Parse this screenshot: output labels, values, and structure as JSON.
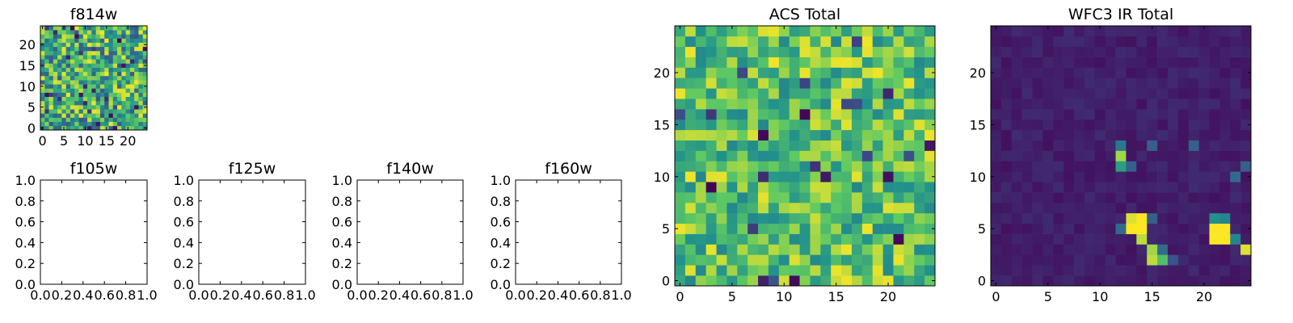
{
  "figure": {
    "colormap": "viridis",
    "colors": [
      "#440154",
      "#3b528b",
      "#21918c",
      "#5ec962",
      "#fde725"
    ]
  },
  "chart_data": [
    {
      "id": "f814w",
      "type": "heatmap",
      "title": "f814w",
      "grid_size": 25,
      "xlim": [
        -0.5,
        24.5
      ],
      "ylim": [
        -0.5,
        24.5
      ],
      "xticks": [
        0,
        5,
        10,
        15,
        20
      ],
      "yticks": [
        0,
        5,
        10,
        15,
        20
      ],
      "field": {
        "kind": "noise",
        "base": 0.62,
        "spread": 0.36,
        "seed": 11,
        "dark_rate": 0.04
      },
      "grid": false
    },
    {
      "id": "f105w",
      "type": "heatmap",
      "title": "f105w",
      "empty": true,
      "xlim": [
        0,
        1
      ],
      "ylim": [
        0,
        1
      ],
      "xticks": [
        "0.0",
        "0.2",
        "0.4",
        "0.6",
        "0.8",
        "1.0"
      ],
      "yticks": [
        "0.0",
        "0.2",
        "0.4",
        "0.6",
        "0.8",
        "1.0"
      ],
      "grid": false
    },
    {
      "id": "f125w",
      "type": "heatmap",
      "title": "f125w",
      "empty": true,
      "xlim": [
        0,
        1
      ],
      "ylim": [
        0,
        1
      ],
      "xticks": [
        "0.0",
        "0.2",
        "0.4",
        "0.6",
        "0.8",
        "1.0"
      ],
      "yticks": [
        "0.0",
        "0.2",
        "0.4",
        "0.6",
        "0.8",
        "1.0"
      ],
      "grid": false
    },
    {
      "id": "f140w",
      "type": "heatmap",
      "title": "f140w",
      "empty": true,
      "xlim": [
        0,
        1
      ],
      "ylim": [
        0,
        1
      ],
      "xticks": [
        "0.0",
        "0.2",
        "0.4",
        "0.6",
        "0.8",
        "1.0"
      ],
      "yticks": [
        "0.0",
        "0.2",
        "0.4",
        "0.6",
        "0.8",
        "1.0"
      ],
      "grid": false
    },
    {
      "id": "f160w",
      "type": "heatmap",
      "title": "f160w",
      "empty": true,
      "xlim": [
        0,
        1
      ],
      "ylim": [
        0,
        1
      ],
      "xticks": [
        "0.0",
        "0.2",
        "0.4",
        "0.6",
        "0.8",
        "1.0"
      ],
      "yticks": [
        "0.0",
        "0.2",
        "0.4",
        "0.6",
        "0.8",
        "1.0"
      ],
      "grid": false
    },
    {
      "id": "acs_total",
      "type": "heatmap",
      "title": "ACS Total",
      "grid_size": 25,
      "xlim": [
        -0.5,
        24.5
      ],
      "ylim": [
        -0.5,
        24.5
      ],
      "xticks": [
        0,
        5,
        10,
        15,
        20
      ],
      "yticks": [
        0,
        5,
        10,
        15,
        20
      ],
      "field": {
        "kind": "noise",
        "base": 0.72,
        "spread": 0.26,
        "seed": 47,
        "dark_rate": 0.035
      },
      "grid": false
    },
    {
      "id": "wfc3_ir_total",
      "type": "heatmap",
      "title": "WFC3 IR Total",
      "grid_size": 25,
      "xlim": [
        -0.5,
        24.5
      ],
      "ylim": [
        -0.5,
        24.5
      ],
      "xticks": [
        0,
        5,
        10,
        15,
        20
      ],
      "yticks": [
        0,
        5,
        10,
        15,
        20
      ],
      "field": {
        "kind": "sources",
        "base": 0.05,
        "spread": 0.08,
        "seed": 5,
        "sources": [
          {
            "x": 13,
            "y": 5,
            "value": 1.0
          },
          {
            "x": 14,
            "y": 5,
            "value": 1.0
          },
          {
            "x": 13,
            "y": 6,
            "value": 0.95
          },
          {
            "x": 14,
            "y": 6,
            "value": 1.0
          },
          {
            "x": 14,
            "y": 4,
            "value": 0.9
          },
          {
            "x": 12,
            "y": 5,
            "value": 0.35
          },
          {
            "x": 21,
            "y": 4,
            "value": 1.0
          },
          {
            "x": 22,
            "y": 4,
            "value": 1.0
          },
          {
            "x": 21,
            "y": 5,
            "value": 1.0
          },
          {
            "x": 22,
            "y": 5,
            "value": 1.0
          },
          {
            "x": 21,
            "y": 6,
            "value": 0.5
          },
          {
            "x": 22,
            "y": 6,
            "value": 0.45
          },
          {
            "x": 24,
            "y": 3,
            "value": 0.95
          },
          {
            "x": 23,
            "y": 4,
            "value": 0.45
          },
          {
            "x": 15,
            "y": 2,
            "value": 0.9
          },
          {
            "x": 15,
            "y": 3,
            "value": 0.85
          },
          {
            "x": 16,
            "y": 2,
            "value": 0.7
          },
          {
            "x": 16,
            "y": 3,
            "value": 0.35
          },
          {
            "x": 12,
            "y": 11,
            "value": 0.55
          },
          {
            "x": 12,
            "y": 12,
            "value": 0.85
          },
          {
            "x": 12,
            "y": 13,
            "value": 0.4
          },
          {
            "x": 13,
            "y": 11,
            "value": 0.3
          },
          {
            "x": 19,
            "y": 13,
            "value": 0.3
          },
          {
            "x": 15,
            "y": 13,
            "value": 0.3
          },
          {
            "x": 23,
            "y": 10,
            "value": 0.35
          },
          {
            "x": 24,
            "y": 11,
            "value": 0.3
          },
          {
            "x": 15,
            "y": 6,
            "value": 0.3
          },
          {
            "x": 17,
            "y": 2,
            "value": 0.25
          }
        ]
      },
      "grid": false
    }
  ]
}
